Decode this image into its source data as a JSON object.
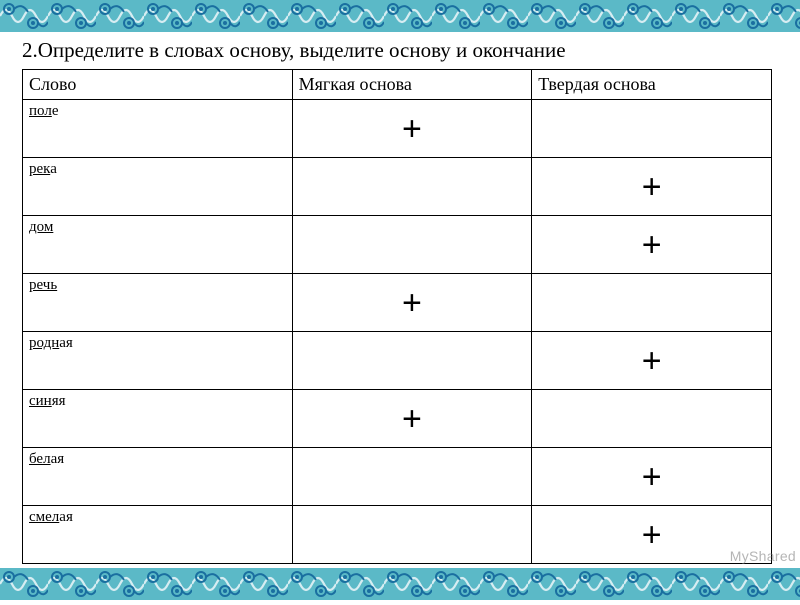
{
  "pattern": {
    "bg": "#5bb9c7",
    "dark": "#1a6fa0",
    "light": "#d7edf2",
    "tiles": 17
  },
  "task": {
    "title": "2.Определите в словах основу, выделите основу и  окончание"
  },
  "table": {
    "headers": {
      "word": "Слово",
      "soft": "Мягкая   основа",
      "hard": "Твердая   основа"
    },
    "rows": [
      {
        "stem": "пол",
        "ending": "е",
        "soft": "+",
        "hard": ""
      },
      {
        "stem": "рек",
        "ending": "а",
        "soft": "",
        "hard": "+"
      },
      {
        "stem": "дом",
        "ending": "",
        "soft": "",
        "hard": "+"
      },
      {
        "stem": "речь",
        "ending": "",
        "soft": "+",
        "hard": ""
      },
      {
        "stem": "родн",
        "ending": "ая",
        "soft": "",
        "hard": "+"
      },
      {
        "stem": "син",
        "ending": "яя",
        "soft": "+",
        "hard": ""
      },
      {
        "stem": "бел",
        "ending": "ая",
        "soft": "",
        "hard": "+"
      },
      {
        "stem": "смел",
        "ending": "ая",
        "soft": "",
        "hard": "+"
      }
    ]
  },
  "watermark": "MyShared"
}
